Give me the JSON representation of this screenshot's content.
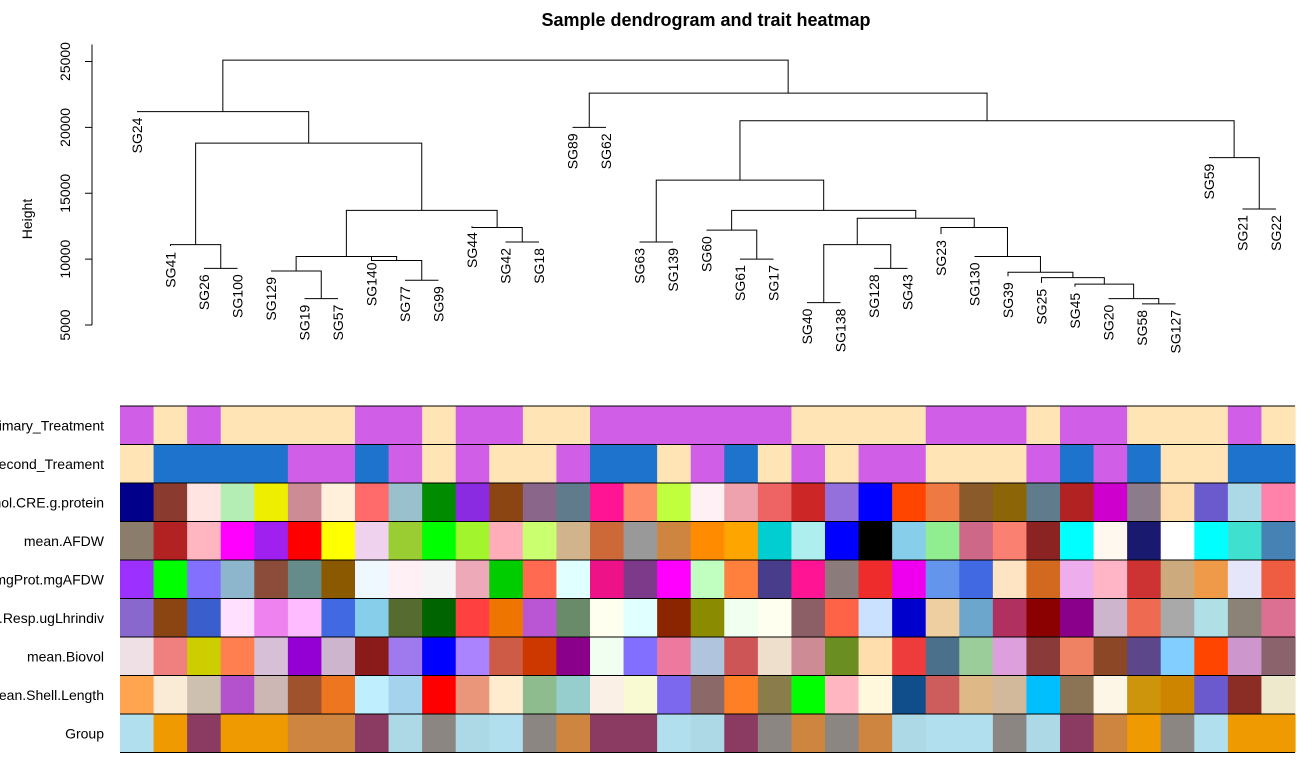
{
  "chart_data": {
    "type": "dendrogram-heatmap",
    "title": "Sample dendrogram and trait heatmap",
    "ylabel": "Height",
    "ylim": [
      5000,
      26000
    ],
    "yticks": [
      5000,
      10000,
      15000,
      20000,
      25000
    ],
    "leaves": [
      "SG24",
      "SG41",
      "SG26",
      "SG100",
      "SG129",
      "SG19",
      "SG57",
      "SG140",
      "SG77",
      "SG99",
      "SG44",
      "SG42",
      "SG18",
      "SG89",
      "SG62",
      "SG63",
      "SG139",
      "SG60",
      "SG61",
      "SG17",
      "SG40",
      "SG138",
      "SG128",
      "SG43",
      "SG23",
      "SG130",
      "SG39",
      "SG25",
      "SG45",
      "SG20",
      "SG58",
      "SG127",
      "SG59",
      "SG21",
      "SG22"
    ],
    "leaf_heights": [
      21200,
      11000,
      9300,
      9300,
      9100,
      7000,
      7000,
      10200,
      8400,
      8400,
      12500,
      11300,
      11300,
      20000,
      20000,
      11300,
      11300,
      12200,
      10000,
      10000,
      6700,
      6700,
      9300,
      9300,
      11900,
      10200,
      8700,
      8200,
      7900,
      7000,
      6600,
      6600,
      17700,
      13800,
      13800
    ],
    "merges": [
      {
        "left": "SG19",
        "right": "SG57",
        "height": 7000
      },
      {
        "left": "SG20",
        "right": "SG58",
        "height": 7000
      },
      {
        "left": "SG40",
        "right": "SG138",
        "height": 6700
      },
      {
        "left": "SG58",
        "right": "SG127",
        "height": 6600
      },
      {
        "left": "SG77",
        "right": "SG99",
        "height": 8400
      },
      {
        "left": "SG26",
        "right": "SG100",
        "height": 9300
      },
      {
        "left": "SG128",
        "right": "SG43",
        "height": 9300
      },
      {
        "left": "SG61",
        "right": "SG17",
        "height": 10000
      },
      {
        "left": "SG42",
        "right": "SG18",
        "height": 11300
      },
      {
        "left": "SG63",
        "right": "SG139",
        "height": 11300
      },
      {
        "left": "SG21",
        "right": "SG22",
        "height": 13800
      },
      {
        "left": "SG89",
        "right": "SG62",
        "height": 20000
      }
    ],
    "node_heights": [
      25100,
      22600,
      21200,
      20500,
      18800,
      17700,
      16000,
      14400,
      13700,
      13100,
      12400,
      11100,
      10200,
      9700,
      9000,
      8600,
      8100
    ],
    "rows": [
      "Primary_Treatment",
      "Second_Treament",
      "mol.CRE.g.protein",
      "mean.AFDW",
      "mgProt.mgAFDW",
      "an.Resp.ugLhrindiv",
      "mean.Biovol",
      "mean.Shell.Length",
      "Group"
    ],
    "colors": [
      [
        "#d15ee6",
        "#ffe4b5",
        "#d15ee6",
        "#ffe4b5",
        "#ffe4b5",
        "#ffe4b5",
        "#ffe4b5",
        "#d15ee6",
        "#d15ee6",
        "#ffe4b5",
        "#d15ee6",
        "#d15ee6",
        "#ffe4b5",
        "#ffe4b5",
        "#d15ee6",
        "#d15ee6",
        "#d15ee6",
        "#d15ee6",
        "#d15ee6",
        "#d15ee6",
        "#ffe4b5",
        "#ffe4b5",
        "#ffe4b5",
        "#ffe4b5",
        "#d15ee6",
        "#d15ee6",
        "#d15ee6",
        "#ffe4b5",
        "#d15ee6",
        "#d15ee6",
        "#ffe4b5",
        "#ffe4b5",
        "#ffe4b5",
        "#d15ee6",
        "#ffe4b5"
      ],
      [
        "#ffe4b5",
        "#1e74cd",
        "#1e74cd",
        "#1e74cd",
        "#1e74cd",
        "#d15ee6",
        "#d15ee6",
        "#1e74cd",
        "#d15ee6",
        "#ffe4b5",
        "#d15ee6",
        "#ffe4b5",
        "#ffe4b5",
        "#d15ee6",
        "#1e74cd",
        "#1e74cd",
        "#ffe4b5",
        "#d15ee6",
        "#1e74cd",
        "#ffe4b5",
        "#d15ee6",
        "#ffe4b5",
        "#d15ee6",
        "#d15ee6",
        "#ffe4b5",
        "#ffe4b5",
        "#ffe4b5",
        "#d15ee6",
        "#1e74cd",
        "#d15ee6",
        "#1e74cd",
        "#ffe4b5",
        "#ffe4b5",
        "#1e74cd",
        "#1e74cd"
      ],
      [
        "#00008b",
        "#8b3a30",
        "#ffe4e1",
        "#b4eeb4",
        "#eeee00",
        "#cd8c95",
        "#fff0db",
        "#ff6a6a",
        "#9ac0cd",
        "#008b00",
        "#8a2be2",
        "#8b4513",
        "#8b668b",
        "#607b8b",
        "#ff1493",
        "#ff8c69",
        "#c0ff3e",
        "#fff0f5",
        "#eea2ad",
        "#ee6363",
        "#cd2626",
        "#9370db",
        "#0000ff",
        "#ff4500",
        "#ee7942",
        "#8b5a2b",
        "#8b6508",
        "#607b8b",
        "#b22222",
        "#cd00cd",
        "#8b7b8b",
        "#ffdead",
        "#6a5acd",
        "#add8e6",
        "#ff82ab"
      ],
      [
        "#8b7d6b",
        "#b22222",
        "#ffb6c1",
        "#ff00ff",
        "#a020f0",
        "#ff0000",
        "#ffff00",
        "#eed2ee",
        "#9acd32",
        "#00ff00",
        "#a2f52d",
        "#ffaeb9",
        "#caff70",
        "#d2b48c",
        "#cd6839",
        "#999999",
        "#cd853f",
        "#ff8c00",
        "#ffa500",
        "#00ced1",
        "#aeeeee",
        "#0000ff",
        "#000000",
        "#87ceeb",
        "#90ee90",
        "#cd6889",
        "#fa8072",
        "#8b2323",
        "#00ffff",
        "#fff8ee",
        "#191970",
        "#ffffff",
        "#00ffff",
        "#40e0d0",
        "#4682b4"
      ],
      [
        "#9b30ff",
        "#00ff00",
        "#8470ff",
        "#8db6cd",
        "#8b4c39",
        "#668b8b",
        "#8b5a00",
        "#f0f8ff",
        "#fff0f5",
        "#f5f5f5",
        "#eea9b8",
        "#00cd00",
        "#ff6a50",
        "#e0ffff",
        "#ee1289",
        "#7d3a8b",
        "#ff00ff",
        "#c1ffc1",
        "#ff7f3c",
        "#483d8b",
        "#ff1493",
        "#8b7b7b",
        "#ee2c2c",
        "#ee00ee",
        "#6495ed",
        "#4169e1",
        "#ffe4c4",
        "#d2691e",
        "#eeaeee",
        "#ffb5c5",
        "#cd3333",
        "#cdaa7d",
        "#ee9a49",
        "#e6e6fa",
        "#ee5c42"
      ],
      [
        "#8968cd",
        "#8b4513",
        "#3a5fcd",
        "#ffe1ff",
        "#ee82ee",
        "#ffbbff",
        "#4169e1",
        "#87ceeb",
        "#556b2f",
        "#006400",
        "#ff4040",
        "#ee7600",
        "#ba55d3",
        "#698b69",
        "#fffff0",
        "#e0ffff",
        "#8b2500",
        "#8b8b00",
        "#f0fff0",
        "#fffff0",
        "#8b5f65",
        "#ff6347",
        "#cae1ff",
        "#0000cd",
        "#eecfa1",
        "#6ca6cd",
        "#b03060",
        "#8b0000",
        "#8b008b",
        "#cdb5cd",
        "#ee6a50",
        "#a9a9a9",
        "#b0e0e6",
        "#8b8378",
        "#db7093"
      ],
      [
        "#eee0e5",
        "#f08080",
        "#cdcd00",
        "#ff7f50",
        "#d8bfd8",
        "#9400d3",
        "#cdb5cd",
        "#8b1a1a",
        "#9f79ee",
        "#0000ff",
        "#ab82ff",
        "#cd5b45",
        "#cd3700",
        "#8b008b",
        "#f0fff0",
        "#836fff",
        "#ee799f",
        "#b0c4de",
        "#cd5555",
        "#eedfcc",
        "#cd8c95",
        "#6b8e23",
        "#ffdeaD",
        "#ee3b3b",
        "#4a708b",
        "#9bcd9b",
        "#dda0dd",
        "#8b3a3a",
        "#ee8262",
        "#8b4726",
        "#5d478b",
        "#82cfff",
        "#ff4500",
        "#cd96cd",
        "#8b636c"
      ],
      [
        "#ffa54f",
        "#faebd7",
        "#cdc0b0",
        "#b452cd",
        "#cdb7b5",
        "#a0522d",
        "#ee7621",
        "#bfefff",
        "#a4d3ee",
        "#ff0000",
        "#e9967a",
        "#ffebcd",
        "#8fbc8f",
        "#96cdcd",
        "#faf0e6",
        "#fafad2",
        "#7b68ee",
        "#8b6969",
        "#ff7f24",
        "#8b7d4b",
        "#00ff00",
        "#ffb6c1",
        "#fff8dc",
        "#104e8b",
        "#cd5c5c",
        "#deb887",
        "#d2b99b",
        "#00bfff",
        "#8b7355",
        "#fdf5e6",
        "#cd950c",
        "#cd8500",
        "#6a5acd",
        "#8b2d24",
        "#eee8cd"
      ],
      [
        "#b2dfee",
        "#ee9a00",
        "#8b3a62",
        "#ee9a00",
        "#ee9a00",
        "#cd853f",
        "#cd853f",
        "#8b3a62",
        "#add8e6",
        "#8b8682",
        "#add8e6",
        "#b2dfee",
        "#8b8682",
        "#cd853f",
        "#8b3a62",
        "#8b3a62",
        "#b2dfee",
        "#add8e6",
        "#8b3a62",
        "#8b8682",
        "#cd853f",
        "#8b8682",
        "#cd853f",
        "#add8e6",
        "#b2dfee",
        "#b2dfee",
        "#8b8682",
        "#add8e6",
        "#8b3a62",
        "#cd853f",
        "#ee9a00",
        "#8b8682",
        "#b2dfee",
        "#ee9a00",
        "#ee9a00"
      ]
    ],
    "grid": false,
    "legend": "none"
  }
}
